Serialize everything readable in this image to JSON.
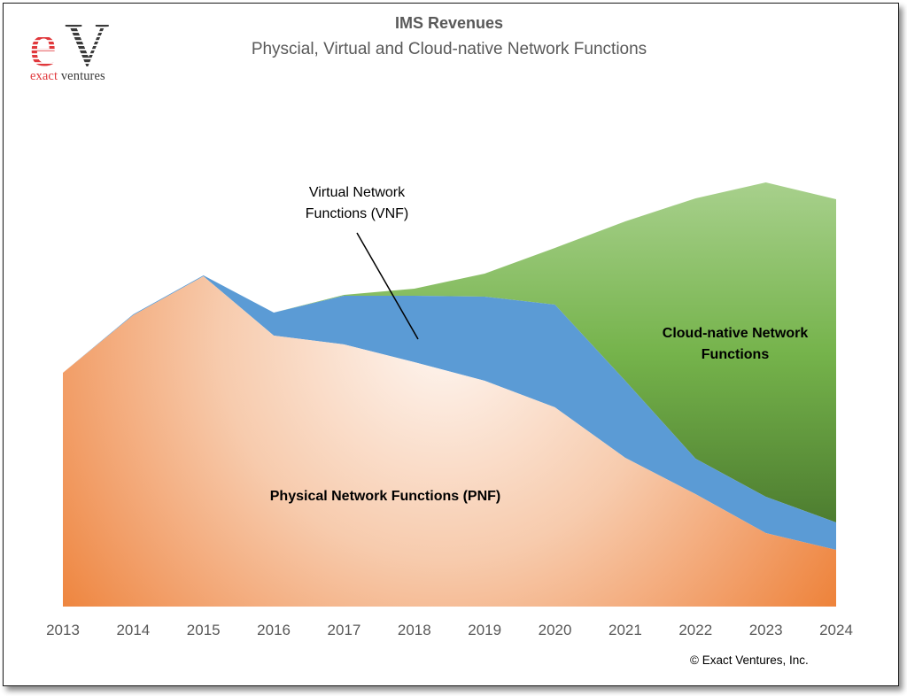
{
  "logo": {
    "mark": "eV",
    "word1": "exact",
    "word2": "ventures",
    "colors": {
      "e": "#e0383c",
      "v": "#3a3a3a"
    }
  },
  "title": "IMS Revenues",
  "subtitle": "Physcial, Virtual and Cloud-native Network Functions",
  "annotations": {
    "vnf_line1": "Virtual Network",
    "vnf_line2": "Functions (VNF)",
    "cnf_line1": "Cloud-native Network",
    "cnf_line2": "Functions",
    "pnf": "Physical Network Functions (PNF)"
  },
  "copyright": "© Exact Ventures, Inc.",
  "colors": {
    "pnf_dark": "#ed7d31",
    "pnf_light": "#fdf1ea",
    "vnf": "#5b9bd5",
    "cnf_light": "#a9d18e",
    "cnf_mid": "#70ad47",
    "cnf_dark": "#4b7a2e",
    "axis_text": "#595959"
  },
  "chart_data": {
    "type": "area",
    "stacked": true,
    "title": "IMS Revenues",
    "subtitle": "Physcial, Virtual and Cloud-native Network Functions",
    "xlabel": "",
    "ylabel": "",
    "y_axis_shown": false,
    "grid": false,
    "legend": "inline annotations",
    "units": "relative (no y-axis scale shown; values estimated on 0-100 scale)",
    "ylim": [
      0,
      100
    ],
    "categories": [
      "2013",
      "2014",
      "2015",
      "2016",
      "2017",
      "2018",
      "2019",
      "2020",
      "2021",
      "2022",
      "2023",
      "2024"
    ],
    "series": [
      {
        "name": "Physical Network Functions (PNF)",
        "values": [
          52.8,
          65.8,
          74.6,
          61.2,
          59.2,
          55.2,
          51.0,
          45.0,
          33.6,
          25.4,
          16.6,
          12.8
        ]
      },
      {
        "name": "Virtual Network Functions (VNF)",
        "values": [
          0,
          0.2,
          0.2,
          5.2,
          11.0,
          15.0,
          19.0,
          23.2,
          17.4,
          8.0,
          8.2,
          6.2
        ]
      },
      {
        "name": "Cloud-native Network Functions",
        "values": [
          0,
          0,
          0,
          0,
          0.2,
          1.6,
          5.2,
          12.8,
          36.0,
          58.8,
          71.0,
          73.0
        ]
      }
    ]
  }
}
